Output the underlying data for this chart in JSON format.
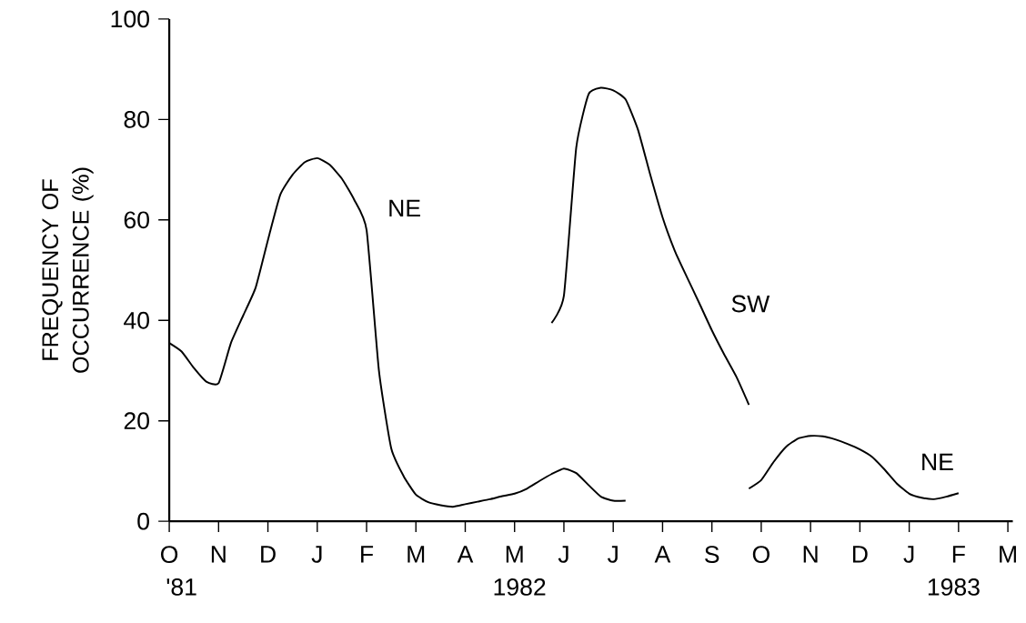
{
  "chart_data": {
    "type": "line",
    "ylabel": "FREQUENCY OF OCCURRENCE (%)",
    "ylim": [
      0,
      100
    ],
    "yticks": [
      0,
      20,
      40,
      60,
      80,
      100
    ],
    "categories": [
      "O",
      null,
      null,
      null,
      "N",
      null,
      null,
      null,
      "D",
      null,
      null,
      null,
      "J",
      null,
      null,
      null,
      "F",
      null,
      null,
      null,
      "M",
      null,
      null,
      null,
      "A",
      null,
      null,
      null,
      "M",
      null,
      null,
      null,
      "J",
      null,
      null,
      null,
      "J",
      null,
      null,
      null,
      "A",
      null,
      null,
      null,
      "S",
      null,
      null,
      null,
      "O",
      null,
      null,
      null,
      "N",
      null,
      null,
      null,
      "D",
      null,
      null,
      null,
      "J",
      null,
      null,
      null,
      "F",
      null,
      null,
      null,
      "M"
    ],
    "annotations": [
      "'81",
      "1982",
      "1983"
    ],
    "series": [
      {
        "name": "NE",
        "color": "#000000",
        "values": [
          35.5,
          33.8,
          30.5,
          27.8,
          27.5,
          35.5,
          41,
          46.5,
          56,
          65,
          69,
          71.5,
          72.3,
          71,
          68.2,
          64,
          58,
          30,
          14.5,
          9,
          5.3,
          3.8,
          3.2,
          2.9,
          3.4,
          3.9,
          4.4,
          5,
          5.5,
          6.5,
          8,
          9.4,
          10.5,
          9.6,
          7.2,
          4.9,
          4.1,
          4.1,
          null,
          null,
          null,
          null,
          null,
          null,
          null,
          null,
          null,
          null,
          null,
          null,
          null,
          null,
          null,
          null,
          null,
          null,
          null,
          null,
          null,
          null,
          null,
          null,
          null,
          null,
          null,
          null,
          null,
          null,
          null
        ]
      },
      {
        "name": "SW",
        "color": "#000000",
        "values": [
          null,
          null,
          null,
          null,
          null,
          null,
          null,
          null,
          null,
          null,
          null,
          null,
          null,
          null,
          null,
          null,
          null,
          null,
          null,
          null,
          null,
          null,
          null,
          null,
          null,
          null,
          null,
          null,
          null,
          null,
          null,
          39.5,
          44.9,
          74.4,
          85,
          86.3,
          85.8,
          84,
          78,
          69,
          60.5,
          53.8,
          48.5,
          43.3,
          38,
          33.2,
          28.7,
          23.2,
          null,
          null,
          null,
          null,
          null,
          null,
          null,
          null,
          null,
          null,
          null,
          null,
          null,
          null,
          null,
          null,
          null,
          null,
          null,
          null,
          null
        ]
      },
      {
        "name": "NE",
        "color": "#000000",
        "values": [
          null,
          null,
          null,
          null,
          null,
          null,
          null,
          null,
          null,
          null,
          null,
          null,
          null,
          null,
          null,
          null,
          null,
          null,
          null,
          null,
          null,
          null,
          null,
          null,
          null,
          null,
          null,
          null,
          null,
          null,
          null,
          null,
          null,
          null,
          null,
          null,
          null,
          null,
          null,
          null,
          null,
          null,
          null,
          null,
          null,
          null,
          null,
          6.5,
          8.2,
          11.8,
          14.8,
          16.5,
          17,
          16.9,
          16.3,
          15.4,
          14.3,
          12.8,
          10.3,
          7.5,
          5.5,
          4.7,
          4.4,
          4.9,
          5.6,
          null,
          null,
          null,
          null
        ]
      }
    ]
  }
}
